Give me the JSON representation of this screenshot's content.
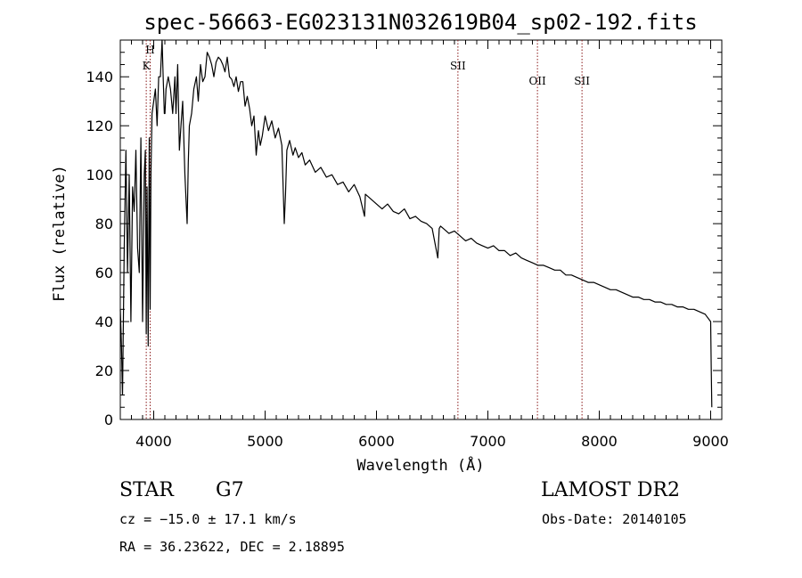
{
  "chart_data": {
    "type": "line",
    "title": "spec-56663-EG023131N032619B04_sp02-192.fits",
    "xlabel": "Wavelength (Å)",
    "ylabel": "Flux (relative)",
    "xlim": [
      3700,
      9100
    ],
    "ylim": [
      0,
      155
    ],
    "xticks": [
      4000,
      5000,
      6000,
      7000,
      8000,
      9000
    ],
    "yticks": [
      0,
      20,
      40,
      60,
      80,
      100,
      120,
      140
    ],
    "grid": false,
    "series": [
      {
        "name": "flux",
        "color": "#000000",
        "x": [
          3700,
          3710,
          3720,
          3735,
          3750,
          3765,
          3780,
          3795,
          3810,
          3825,
          3840,
          3855,
          3870,
          3885,
          3900,
          3915,
          3925,
          3933,
          3940,
          3950,
          3960,
          3968,
          3975,
          3985,
          4000,
          4015,
          4030,
          4045,
          4060,
          4075,
          4085,
          4095,
          4101,
          4110,
          4130,
          4150,
          4170,
          4190,
          4200,
          4215,
          4230,
          4245,
          4260,
          4280,
          4300,
          4310,
          4320,
          4340,
          4360,
          4383,
          4400,
          4420,
          4440,
          4460,
          4480,
          4500,
          4520,
          4540,
          4560,
          4580,
          4600,
          4620,
          4640,
          4660,
          4680,
          4700,
          4720,
          4740,
          4760,
          4780,
          4800,
          4820,
          4840,
          4861,
          4880,
          4900,
          4920,
          4940,
          4957,
          4975,
          5000,
          5030,
          5060,
          5090,
          5120,
          5150,
          5172,
          5183,
          5195,
          5220,
          5250,
          5270,
          5300,
          5330,
          5360,
          5400,
          5450,
          5500,
          5550,
          5600,
          5650,
          5700,
          5750,
          5800,
          5850,
          5893,
          5900,
          5950,
          6000,
          6050,
          6100,
          6150,
          6200,
          6250,
          6300,
          6350,
          6400,
          6450,
          6500,
          6550,
          6563,
          6575,
          6600,
          6650,
          6700,
          6750,
          6800,
          6850,
          6900,
          6950,
          7000,
          7050,
          7100,
          7150,
          7200,
          7250,
          7300,
          7350,
          7400,
          7450,
          7500,
          7550,
          7600,
          7650,
          7700,
          7750,
          7800,
          7850,
          7900,
          7950,
          8000,
          8050,
          8100,
          8150,
          8200,
          8250,
          8300,
          8350,
          8400,
          8450,
          8500,
          8550,
          8600,
          8650,
          8700,
          8750,
          8800,
          8850,
          8900,
          8950,
          9000,
          9005,
          9010
        ],
        "y": [
          45,
          30,
          10,
          70,
          110,
          60,
          100,
          40,
          95,
          85,
          110,
          70,
          60,
          115,
          40,
          100,
          110,
          35,
          95,
          30,
          115,
          45,
          100,
          125,
          130,
          135,
          120,
          140,
          140,
          155,
          140,
          125,
          125,
          135,
          140,
          135,
          125,
          140,
          125,
          145,
          110,
          120,
          130,
          100,
          80,
          105,
          120,
          125,
          135,
          140,
          130,
          145,
          138,
          140,
          150,
          148,
          145,
          140,
          146,
          148,
          147,
          145,
          142,
          148,
          140,
          139,
          136,
          140,
          134,
          138,
          138,
          128,
          132,
          127,
          120,
          124,
          108,
          118,
          112,
          116,
          124,
          118,
          122,
          115,
          119,
          112,
          80,
          92,
          110,
          114,
          108,
          111,
          107,
          109,
          104,
          106,
          101,
          103,
          99,
          100,
          96,
          97,
          93,
          96,
          91,
          83,
          92,
          90,
          88,
          86,
          88,
          85,
          84,
          86,
          82,
          83,
          81,
          80,
          78,
          66,
          78,
          79,
          78,
          76,
          77,
          75,
          73,
          74,
          72,
          71,
          70,
          71,
          69,
          69,
          67,
          68,
          66,
          65,
          64,
          63,
          63,
          62,
          61,
          61,
          59,
          59,
          58,
          57,
          56,
          56,
          55,
          54,
          53,
          53,
          52,
          51,
          50,
          50,
          49,
          49,
          48,
          48,
          47,
          47,
          46,
          46,
          45,
          45,
          44,
          43,
          40,
          22,
          5
        ]
      }
    ],
    "annotations": [
      {
        "label": "H",
        "x": 3968
      },
      {
        "label": "K",
        "x": 3933
      },
      {
        "label": "SII",
        "x": 6731
      },
      {
        "label": "OII",
        "x": 7445
      },
      {
        "label": "SII",
        "x": 7845
      }
    ],
    "line_color": "#8b1a1a"
  },
  "info": {
    "object_type": "STAR",
    "subclass": "G7",
    "survey": "LAMOST DR2",
    "redshift": "cz = −15.0 ± 17.1 km/s",
    "obs_date": "Obs-Date: 20140105",
    "coords": "RA =  36.23622, DEC =   2.18895"
  }
}
